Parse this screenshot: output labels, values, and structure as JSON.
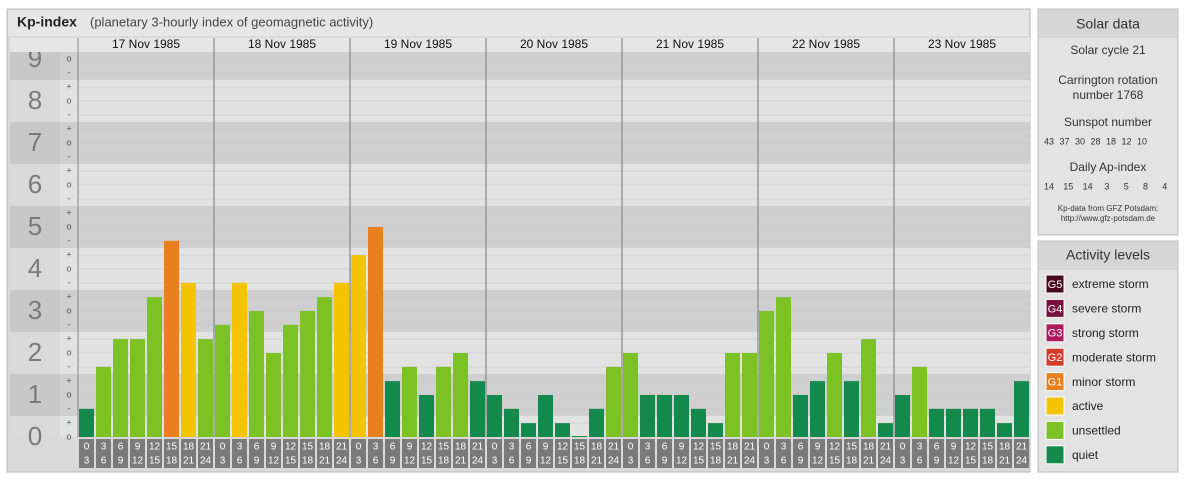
{
  "chart_data": {
    "type": "bar",
    "title": "Kp-index",
    "subtitle": "(planetary 3-hourly index of geomagnetic activity)",
    "ylim": [
      0,
      9
    ],
    "yticks": [
      0,
      1,
      2,
      3,
      4,
      5,
      6,
      7,
      8,
      9
    ],
    "minor_tick_labels": [
      "-",
      "o",
      "+"
    ],
    "slot_start": [
      0,
      3,
      6,
      9,
      12,
      15,
      18,
      21
    ],
    "slot_end": [
      3,
      6,
      9,
      12,
      15,
      18,
      21,
      24
    ],
    "days": [
      {
        "date": "17 Nov 1985",
        "values": [
          0.67,
          1.67,
          2.33,
          2.33,
          3.33,
          4.67,
          3.67,
          2.33
        ],
        "colors": [
          "#138a4b",
          "#7cc225",
          "#7cc225",
          "#7cc225",
          "#7cc225",
          "#e8801f",
          "#f5c400",
          "#7cc225"
        ]
      },
      {
        "date": "18 Nov 1985",
        "values": [
          2.67,
          3.67,
          3,
          2,
          2.67,
          3,
          3.33,
          3.67
        ],
        "colors": [
          "#7cc225",
          "#f5c400",
          "#7cc225",
          "#7cc225",
          "#7cc225",
          "#7cc225",
          "#7cc225",
          "#f5c400"
        ]
      },
      {
        "date": "19 Nov 1985",
        "values": [
          4.33,
          5,
          1.33,
          1.67,
          1,
          1.67,
          2,
          1.33
        ],
        "colors": [
          "#f5c400",
          "#e8801f",
          "#138a4b",
          "#7cc225",
          "#138a4b",
          "#7cc225",
          "#7cc225",
          "#138a4b"
        ]
      },
      {
        "date": "20 Nov 1985",
        "values": [
          1,
          0.67,
          0.33,
          1,
          0.33,
          0,
          0.67,
          1.67
        ],
        "colors": [
          "#138a4b",
          "#138a4b",
          "#138a4b",
          "#138a4b",
          "#138a4b",
          "#138a4b",
          "#138a4b",
          "#7cc225"
        ]
      },
      {
        "date": "21 Nov 1985",
        "values": [
          2,
          1,
          1,
          1,
          0.67,
          0.33,
          2,
          2
        ],
        "colors": [
          "#7cc225",
          "#138a4b",
          "#138a4b",
          "#138a4b",
          "#138a4b",
          "#138a4b",
          "#7cc225",
          "#7cc225"
        ]
      },
      {
        "date": "22 Nov 1985",
        "values": [
          3,
          3.33,
          1,
          1.33,
          2,
          1.33,
          2.33,
          0.33
        ],
        "colors": [
          "#7cc225",
          "#7cc225",
          "#138a4b",
          "#138a4b",
          "#7cc225",
          "#138a4b",
          "#7cc225",
          "#138a4b"
        ]
      },
      {
        "date": "23 Nov 1985",
        "values": [
          1,
          1.67,
          0.67,
          0.67,
          0.67,
          0.67,
          0.33,
          1.33
        ],
        "colors": [
          "#138a4b",
          "#7cc225",
          "#138a4b",
          "#138a4b",
          "#138a4b",
          "#138a4b",
          "#138a4b",
          "#138a4b"
        ]
      }
    ]
  },
  "solar_data": {
    "title": "Solar data",
    "cycle": "Solar cycle 21",
    "carrington": [
      "Carrington rotation",
      "number 1768"
    ],
    "sunspot_title": "Sunspot number",
    "sunspot": [
      43,
      37,
      30,
      28,
      18,
      12,
      10
    ],
    "ap_title": "Daily Ap-index",
    "ap": [
      14,
      15,
      14,
      3,
      5,
      8,
      4
    ],
    "source": [
      "Kp-data from GFZ Potsdam:",
      "http://www.gfz-potsdam.de"
    ]
  },
  "activity_levels": {
    "title": "Activity levels",
    "items": [
      {
        "badge": "G5",
        "label": "extreme storm",
        "color": "#4a0a1e"
      },
      {
        "badge": "G4",
        "label": "severe storm",
        "color": "#7a1040"
      },
      {
        "badge": "G3",
        "label": "strong storm",
        "color": "#b0195e"
      },
      {
        "badge": "G2",
        "label": "moderate storm",
        "color": "#d63a2a"
      },
      {
        "badge": "G1",
        "label": "minor storm",
        "color": "#e8801f"
      },
      {
        "label": "active",
        "color": "#f5c400"
      },
      {
        "label": "unsettled",
        "color": "#7cc225"
      },
      {
        "label": "quiet",
        "color": "#138a4b"
      }
    ]
  }
}
